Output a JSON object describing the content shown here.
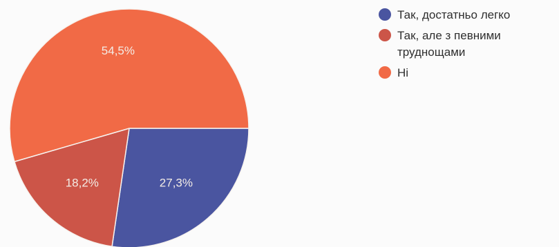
{
  "chart_data": {
    "type": "pie",
    "categories": [
      "Так, достатньо легко",
      "Так, але з певними труднощами",
      "Ні"
    ],
    "values": [
      27.3,
      18.2,
      54.5
    ],
    "value_labels": [
      "27,3%",
      "18,2%",
      "54,5%"
    ],
    "colors": [
      "#4a55a0",
      "#cc5548",
      "#f16a46"
    ],
    "legend_position": "right",
    "title": ""
  }
}
